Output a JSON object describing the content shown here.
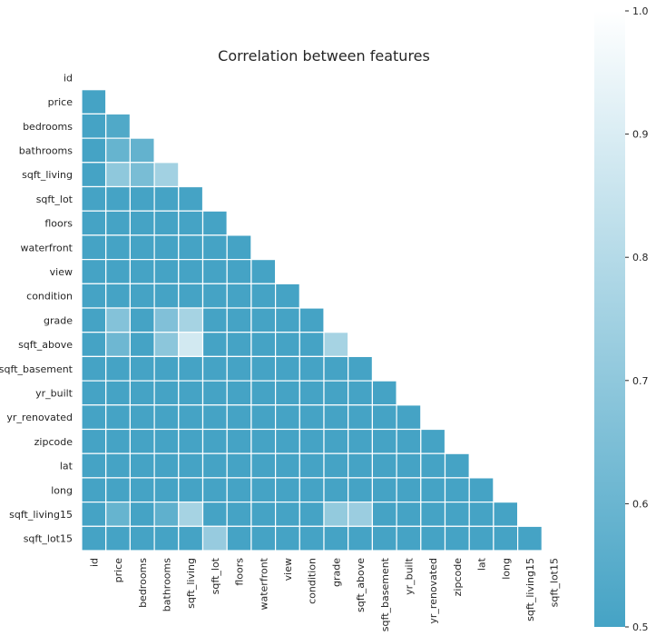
{
  "chart_data": {
    "type": "heatmap",
    "title": "Correlation between features",
    "labels": [
      "id",
      "price",
      "bedrooms",
      "bathrooms",
      "sqft_living",
      "sqft_lot",
      "floors",
      "waterfront",
      "view",
      "condition",
      "grade",
      "sqft_above",
      "sqft_basement",
      "yr_built",
      "yr_renovated",
      "zipcode",
      "lat",
      "long",
      "sqft_living15",
      "sqft_lot15"
    ],
    "mask": "upper triangle including diagonal",
    "colorbar": {
      "min": 0.5,
      "max": 1.0,
      "ticks": [
        "0.5",
        "0.6",
        "0.7",
        "0.8",
        "0.9",
        "1.0"
      ]
    },
    "colors": {
      "low": "#45a3c5",
      "high": "#ffffff"
    },
    "matrix": [
      [],
      [
        0.5
      ],
      [
        0.5,
        0.53
      ],
      [
        0.5,
        0.59,
        0.58
      ],
      [
        0.5,
        0.7,
        0.64,
        0.75
      ],
      [
        0.5,
        0.5,
        0.5,
        0.5,
        0.5
      ],
      [
        0.5,
        0.5,
        0.5,
        0.5,
        0.5,
        0.5
      ],
      [
        0.5,
        0.5,
        0.5,
        0.5,
        0.5,
        0.5,
        0.5
      ],
      [
        0.5,
        0.5,
        0.5,
        0.5,
        0.5,
        0.5,
        0.5,
        0.5
      ],
      [
        0.5,
        0.5,
        0.5,
        0.5,
        0.5,
        0.5,
        0.5,
        0.5,
        0.5
      ],
      [
        0.5,
        0.67,
        0.5,
        0.66,
        0.76,
        0.5,
        0.5,
        0.5,
        0.5,
        0.5
      ],
      [
        0.5,
        0.61,
        0.5,
        0.69,
        0.88,
        0.5,
        0.5,
        0.5,
        0.5,
        0.5,
        0.76
      ],
      [
        0.5,
        0.5,
        0.5,
        0.5,
        0.5,
        0.5,
        0.5,
        0.5,
        0.5,
        0.5,
        0.5,
        0.5
      ],
      [
        0.5,
        0.5,
        0.5,
        0.5,
        0.5,
        0.5,
        0.5,
        0.5,
        0.5,
        0.5,
        0.5,
        0.5,
        0.5
      ],
      [
        0.5,
        0.5,
        0.5,
        0.5,
        0.5,
        0.5,
        0.5,
        0.5,
        0.5,
        0.5,
        0.5,
        0.5,
        0.5,
        0.5
      ],
      [
        0.5,
        0.5,
        0.5,
        0.5,
        0.5,
        0.5,
        0.5,
        0.5,
        0.5,
        0.5,
        0.5,
        0.5,
        0.5,
        0.5,
        0.5
      ],
      [
        0.5,
        0.5,
        0.5,
        0.5,
        0.5,
        0.5,
        0.5,
        0.5,
        0.5,
        0.5,
        0.5,
        0.5,
        0.5,
        0.5,
        0.5,
        0.5
      ],
      [
        0.5,
        0.5,
        0.5,
        0.5,
        0.5,
        0.5,
        0.5,
        0.5,
        0.5,
        0.5,
        0.5,
        0.5,
        0.5,
        0.5,
        0.5,
        0.5,
        0.5
      ],
      [
        0.5,
        0.59,
        0.5,
        0.57,
        0.76,
        0.5,
        0.5,
        0.5,
        0.5,
        0.5,
        0.71,
        0.73,
        0.5,
        0.5,
        0.5,
        0.5,
        0.5,
        0.5
      ],
      [
        0.5,
        0.5,
        0.5,
        0.5,
        0.5,
        0.72,
        0.5,
        0.5,
        0.5,
        0.5,
        0.5,
        0.5,
        0.5,
        0.5,
        0.5,
        0.5,
        0.5,
        0.5,
        0.5
      ]
    ]
  }
}
